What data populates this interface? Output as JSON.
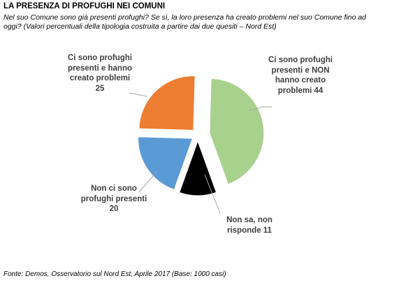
{
  "title": "LA PRESENZA DI PROFUGHI NEI COMUNI",
  "subtitle": "Nel suo Comune sono già presenti profughi? Se sì, la loro presenza ha creato problemi nel suo Comune fino ad oggi? (Valori percentuali della tipologia costruita a partire dai due quesiti – Nord Est)",
  "source": "Fonte: Demos, Osservatorio sul Nord Est, Aprile 2017 (Base: 1000 casi)",
  "chart_data": {
    "type": "pie",
    "title": "LA PRESENZA DI PROFUGHI NEI COMUNI",
    "exploded": true,
    "slices": [
      {
        "label": "Ci sono profughi presenti e NON hanno creato problemi 44",
        "value": 44,
        "color": "#A9D18E"
      },
      {
        "label": "Non sa, non risponde 11",
        "value": 11,
        "color": "#000000"
      },
      {
        "label": "Non ci sono profughi presenti 20",
        "value": 20,
        "color": "#5B9BD5"
      },
      {
        "label": "Ci sono profughi presenti e hanno creato problemi 25",
        "value": 25,
        "color": "#ED7D31"
      }
    ],
    "leader_line_color": "#A6A6A6"
  }
}
